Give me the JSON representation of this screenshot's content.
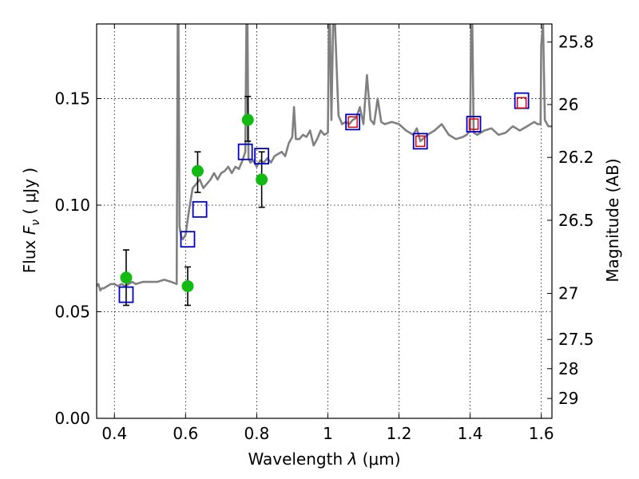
{
  "chart_data": {
    "type": "line",
    "title": "",
    "xlabel": {
      "prefix": "Wavelength  ",
      "symbol": "λ",
      "unit": " (μm)"
    },
    "ylabel": {
      "prefix": "Flux  ",
      "symbol": "F",
      "sub": "ν",
      "unit": "  ( μJy )"
    },
    "ylabel_right": "Magnitude (AB)",
    "xlim": [
      0.35,
      1.63
    ],
    "ylim": [
      0.0,
      0.185
    ],
    "grid": true,
    "x_ticks": [
      0.4,
      0.6,
      0.8,
      1.0,
      1.2,
      1.4,
      1.6
    ],
    "x_tick_labels": [
      "0.4",
      "0.6",
      "0.8",
      "1",
      "1.2",
      "1.4",
      "1.6"
    ],
    "y_ticks": [
      0.0,
      0.05,
      0.1,
      0.15
    ],
    "y_tick_labels": [
      "0.00",
      "0.05",
      "0.10",
      "0.15"
    ],
    "right_ticks": [
      {
        "label": "25.8",
        "flux": 0.1765
      },
      {
        "label": "26",
        "flux": 0.1472
      },
      {
        "label": "26.2",
        "flux": 0.1224
      },
      {
        "label": "26.5",
        "flux": 0.0929
      },
      {
        "label": "27",
        "flux": 0.0586
      },
      {
        "label": "27.5",
        "flux": 0.037
      },
      {
        "label": "28",
        "flux": 0.0233
      },
      {
        "label": "29",
        "flux": 0.0093
      }
    ],
    "colors": {
      "model": "#808080",
      "observed": "#11bb11",
      "model_photometry": "#0000cc",
      "alt_photometry": "#dd0000",
      "error_bar": "#000000"
    },
    "series": [
      {
        "kind": "model_spectrum",
        "x": [
          0.35,
          0.355,
          0.36,
          0.365,
          0.37,
          0.38,
          0.39,
          0.4,
          0.41,
          0.42,
          0.43,
          0.44,
          0.45,
          0.46,
          0.48,
          0.5,
          0.52,
          0.54,
          0.56,
          0.575,
          0.578,
          0.58,
          0.583,
          0.588,
          0.592,
          0.6,
          0.61,
          0.62,
          0.63,
          0.64,
          0.65,
          0.66,
          0.67,
          0.68,
          0.69,
          0.7,
          0.71,
          0.72,
          0.73,
          0.74,
          0.75,
          0.76,
          0.768,
          0.771,
          0.774,
          0.777,
          0.782,
          0.79,
          0.8,
          0.81,
          0.82,
          0.83,
          0.84,
          0.85,
          0.86,
          0.87,
          0.88,
          0.89,
          0.9,
          0.905,
          0.91,
          0.92,
          0.93,
          0.94,
          0.95,
          0.96,
          0.97,
          0.98,
          0.99,
          1.0,
          1.003,
          1.006,
          1.01,
          1.015,
          1.02,
          1.03,
          1.04,
          1.05,
          1.06,
          1.07,
          1.08,
          1.09,
          1.1,
          1.11,
          1.12,
          1.13,
          1.14,
          1.15,
          1.16,
          1.18,
          1.2,
          1.22,
          1.24,
          1.25,
          1.26,
          1.28,
          1.3,
          1.32,
          1.34,
          1.36,
          1.38,
          1.39,
          1.4,
          1.403,
          1.406,
          1.41,
          1.42,
          1.44,
          1.46,
          1.48,
          1.5,
          1.52,
          1.54,
          1.56,
          1.58,
          1.59,
          1.598,
          1.6,
          1.605,
          1.61,
          1.62,
          1.63
        ],
        "y": [
          0.062,
          0.063,
          0.06,
          0.061,
          0.061,
          0.062,
          0.063,
          0.063,
          0.062,
          0.063,
          0.062,
          0.063,
          0.064,
          0.063,
          0.064,
          0.064,
          0.064,
          0.065,
          0.064,
          0.063,
          0.185,
          0.185,
          0.09,
          0.085,
          0.084,
          0.086,
          0.098,
          0.108,
          0.11,
          0.112,
          0.108,
          0.11,
          0.112,
          0.115,
          0.112,
          0.115,
          0.116,
          0.118,
          0.115,
          0.118,
          0.117,
          0.121,
          0.125,
          0.185,
          0.185,
          0.122,
          0.12,
          0.121,
          0.118,
          0.121,
          0.12,
          0.122,
          0.12,
          0.123,
          0.124,
          0.125,
          0.123,
          0.129,
          0.132,
          0.146,
          0.131,
          0.131,
          0.133,
          0.132,
          0.135,
          0.128,
          0.131,
          0.135,
          0.133,
          0.134,
          0.185,
          0.185,
          0.14,
          0.185,
          0.185,
          0.142,
          0.138,
          0.139,
          0.138,
          0.14,
          0.141,
          0.146,
          0.138,
          0.161,
          0.14,
          0.138,
          0.15,
          0.139,
          0.138,
          0.139,
          0.138,
          0.135,
          0.133,
          0.136,
          0.13,
          0.133,
          0.135,
          0.138,
          0.133,
          0.131,
          0.132,
          0.133,
          0.135,
          0.185,
          0.185,
          0.134,
          0.133,
          0.135,
          0.136,
          0.133,
          0.134,
          0.137,
          0.135,
          0.137,
          0.139,
          0.138,
          0.138,
          0.175,
          0.185,
          0.14,
          0.137,
          0.137
        ]
      },
      {
        "kind": "observed_points",
        "x": [
          0.433,
          0.606,
          0.634,
          0.775,
          0.814
        ],
        "y": [
          0.066,
          0.062,
          0.116,
          0.14,
          0.112
        ],
        "yerr_low": [
          0.053,
          0.053,
          0.106,
          0.13,
          0.099
        ],
        "yerr_high": [
          0.079,
          0.071,
          0.125,
          0.151,
          0.125
        ]
      },
      {
        "kind": "model_photometry_blue",
        "x": [
          0.433,
          0.606,
          0.64,
          0.768,
          0.814,
          1.07,
          1.26,
          1.41,
          1.545
        ],
        "y": [
          0.058,
          0.084,
          0.098,
          0.125,
          0.123,
          0.139,
          0.13,
          0.138,
          0.149
        ]
      },
      {
        "kind": "model_photometry_red",
        "x": [
          1.07,
          1.26,
          1.41,
          1.545
        ],
        "y": [
          0.139,
          0.13,
          0.138,
          0.148
        ]
      }
    ]
  }
}
